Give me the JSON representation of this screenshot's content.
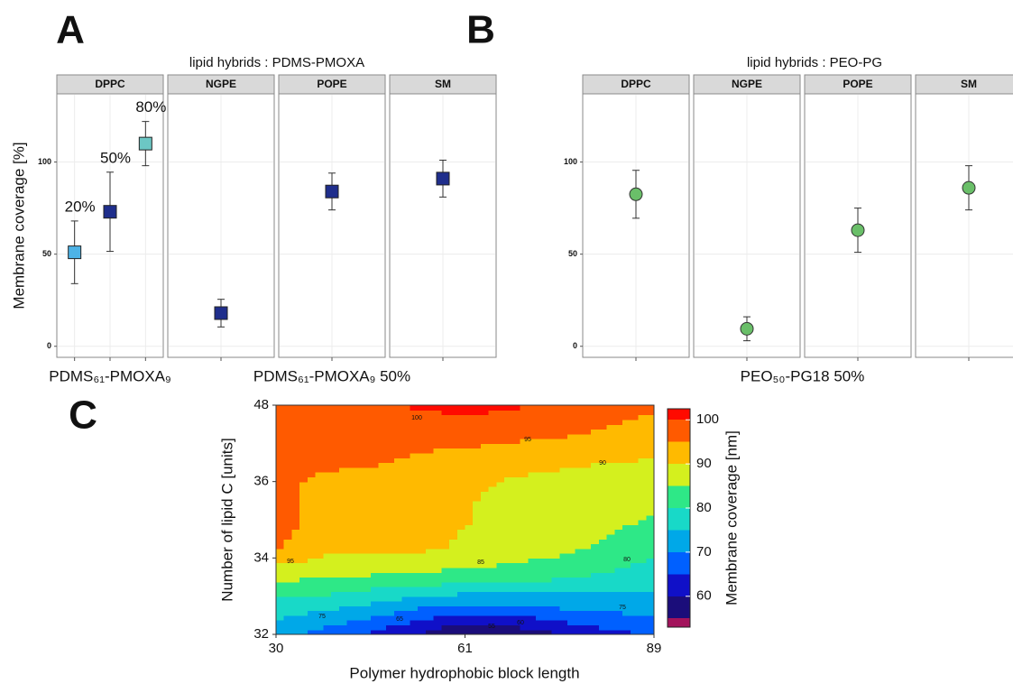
{
  "chart_data": [
    {
      "type": "errorbar",
      "panel": "A",
      "title": "lipid hybrids : PDMS-PMOXA",
      "y_label": "Membrane coverage  [%]",
      "facets": [
        "DPPC",
        "NGPE",
        "POPE",
        "SM"
      ],
      "ylim": [
        -6,
        137
      ],
      "yticks": [
        0,
        50,
        100
      ],
      "grid": true,
      "marker": "square",
      "points": [
        {
          "facet": "DPPC",
          "label": "20%",
          "value": 51,
          "error": 17,
          "color": "#4db3e6"
        },
        {
          "facet": "DPPC",
          "label": "50%",
          "value": 73,
          "error": 21.5,
          "color": "#1f2e8c"
        },
        {
          "facet": "DPPC",
          "label": "80%",
          "value": 110,
          "error": 12,
          "color": "#6cc7c4"
        },
        {
          "facet": "NGPE",
          "value": 18,
          "error": 7.5,
          "color": "#1f2e8c"
        },
        {
          "facet": "POPE",
          "value": 84,
          "error": 10,
          "color": "#1f2e8c"
        },
        {
          "facet": "SM",
          "value": 91,
          "error": 10,
          "color": "#1f2e8c"
        }
      ],
      "group_labels": [
        {
          "text": "PDMS₆₁-PMOXA₉",
          "facets": [
            "DPPC"
          ]
        },
        {
          "text": "PDMS₆₁-PMOXA₉ 50%",
          "facets": [
            "NGPE",
            "POPE",
            "SM"
          ]
        }
      ]
    },
    {
      "type": "errorbar",
      "panel": "B",
      "title": "lipid hybrids : PEO-PG",
      "facets": [
        "DPPC",
        "NGPE",
        "POPE",
        "SM"
      ],
      "ylim": [
        -6,
        137
      ],
      "yticks": [
        0,
        50,
        100
      ],
      "grid": true,
      "marker": "circle",
      "points": [
        {
          "facet": "DPPC",
          "value": 82.5,
          "error": 13,
          "color": "#6abf69"
        },
        {
          "facet": "NGPE",
          "value": 9.5,
          "error": 6.5,
          "color": "#6abf69"
        },
        {
          "facet": "POPE",
          "value": 63,
          "error": 12,
          "color": "#6abf69"
        },
        {
          "facet": "SM",
          "value": 86,
          "error": 12,
          "color": "#6abf69"
        }
      ],
      "group_labels": [
        {
          "text": "PEO₅₀-PG18  50%",
          "facets": [
            "DPPC",
            "NGPE",
            "POPE",
            "SM"
          ]
        }
      ]
    },
    {
      "type": "contour",
      "panel": "C",
      "x_label": "Polymer hydrophobic block length",
      "y_label": "Number of lipid C [units]",
      "x_categories": [
        30,
        61,
        89
      ],
      "y_categories": [
        32,
        34,
        36,
        48
      ],
      "z": [
        [
          72,
          68,
          64,
          60,
          54,
          56,
          60,
          63,
          66
        ],
        [
          78,
          76.5,
          74,
          71,
          69,
          69,
          71,
          72,
          72
        ],
        [
          86,
          85.5,
          84.5,
          83.5,
          83,
          82,
          80.5,
          79,
          77
        ],
        [
          95.5,
          91.5,
          91,
          90.8,
          89.5,
          88,
          86.5,
          84,
          81.5
        ],
        [
          97.5,
          92.5,
          91.5,
          91,
          90.2,
          88.5,
          87.5,
          86.5,
          84.5
        ],
        [
          96.5,
          93,
          92,
          91.5,
          90.5,
          89,
          88.5,
          88,
          87.5
        ],
        [
          96,
          96,
          95.5,
          94,
          92.5,
          91,
          90.5,
          90,
          89.5
        ],
        [
          97,
          97,
          97,
          97,
          97.5,
          96.5,
          95.5,
          94.5,
          93.5
        ],
        [
          97,
          98,
          99,
          100.5,
          101.5,
          100.5,
          98.5,
          96.5,
          95.5
        ]
      ],
      "levels": [
        50,
        55,
        60,
        65,
        70,
        75,
        80,
        85,
        90,
        95,
        100,
        105
      ],
      "colors": [
        "#a3135c",
        "#1b0d7a",
        "#1010c8",
        "#0060ff",
        "#00a8e8",
        "#18d9c8",
        "#2ee887",
        "#d4f01e",
        "#ffba00",
        "#ff5a00",
        "#ff0a00"
      ],
      "contour_labels": [
        100,
        95,
        90,
        95,
        85,
        80,
        75,
        65,
        55,
        60,
        75
      ],
      "colorbar_label": "Membrane coverage [nm]",
      "colorbar_lim": [
        53,
        102.5
      ],
      "colorbar_ticks": [
        60,
        70,
        80,
        90,
        100
      ]
    }
  ]
}
